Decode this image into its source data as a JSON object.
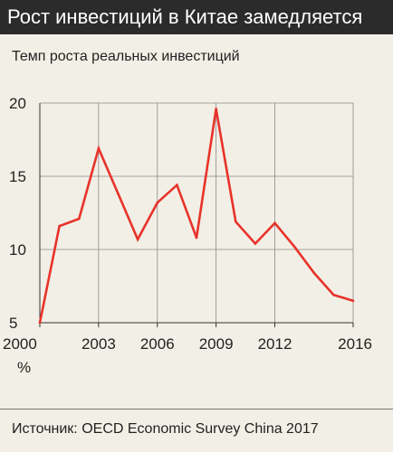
{
  "header": {
    "title": "Рост инвестиций в Китае замедляется",
    "subtitle": "Темп роста реальных инвестиций"
  },
  "footer": {
    "source": "Источник: OECD Economic Survey China 2017"
  },
  "chart_data": {
    "type": "line",
    "title": "Рост инвестиций в Китае замедляется",
    "subtitle": "Темп роста реальных инвестиций",
    "xlabel": "",
    "ylabel": "%",
    "xlim": [
      2000,
      2016
    ],
    "ylim": [
      5,
      20
    ],
    "x_ticks": [
      2000,
      2003,
      2006,
      2009,
      2012,
      2016
    ],
    "x_tick_labels": [
      "2000",
      "2003",
      "2006",
      "2009",
      "2012",
      "2016"
    ],
    "y_ticks": [
      5,
      10,
      15,
      20
    ],
    "y_tick_labels": [
      "5",
      "10",
      "15",
      "20"
    ],
    "y_unit_label": "%",
    "grid": true,
    "colors": {
      "line": "#e8332a",
      "grid": "#8a8a8a",
      "background": "#f2efe6",
      "title_bar": "#2b2b2b"
    },
    "series": [
      {
        "x": [
          2000,
          2001,
          2002,
          2003,
          2004,
          2005,
          2006,
          2007,
          2008,
          2009,
          2010,
          2011,
          2012,
          2013,
          2014,
          2015,
          2016
        ],
        "values": [
          5.0,
          11.6,
          12.1,
          16.9,
          13.8,
          10.7,
          13.2,
          14.4,
          10.8,
          19.6,
          11.9,
          10.4,
          11.8,
          10.2,
          8.4,
          6.9,
          6.5
        ]
      }
    ]
  }
}
